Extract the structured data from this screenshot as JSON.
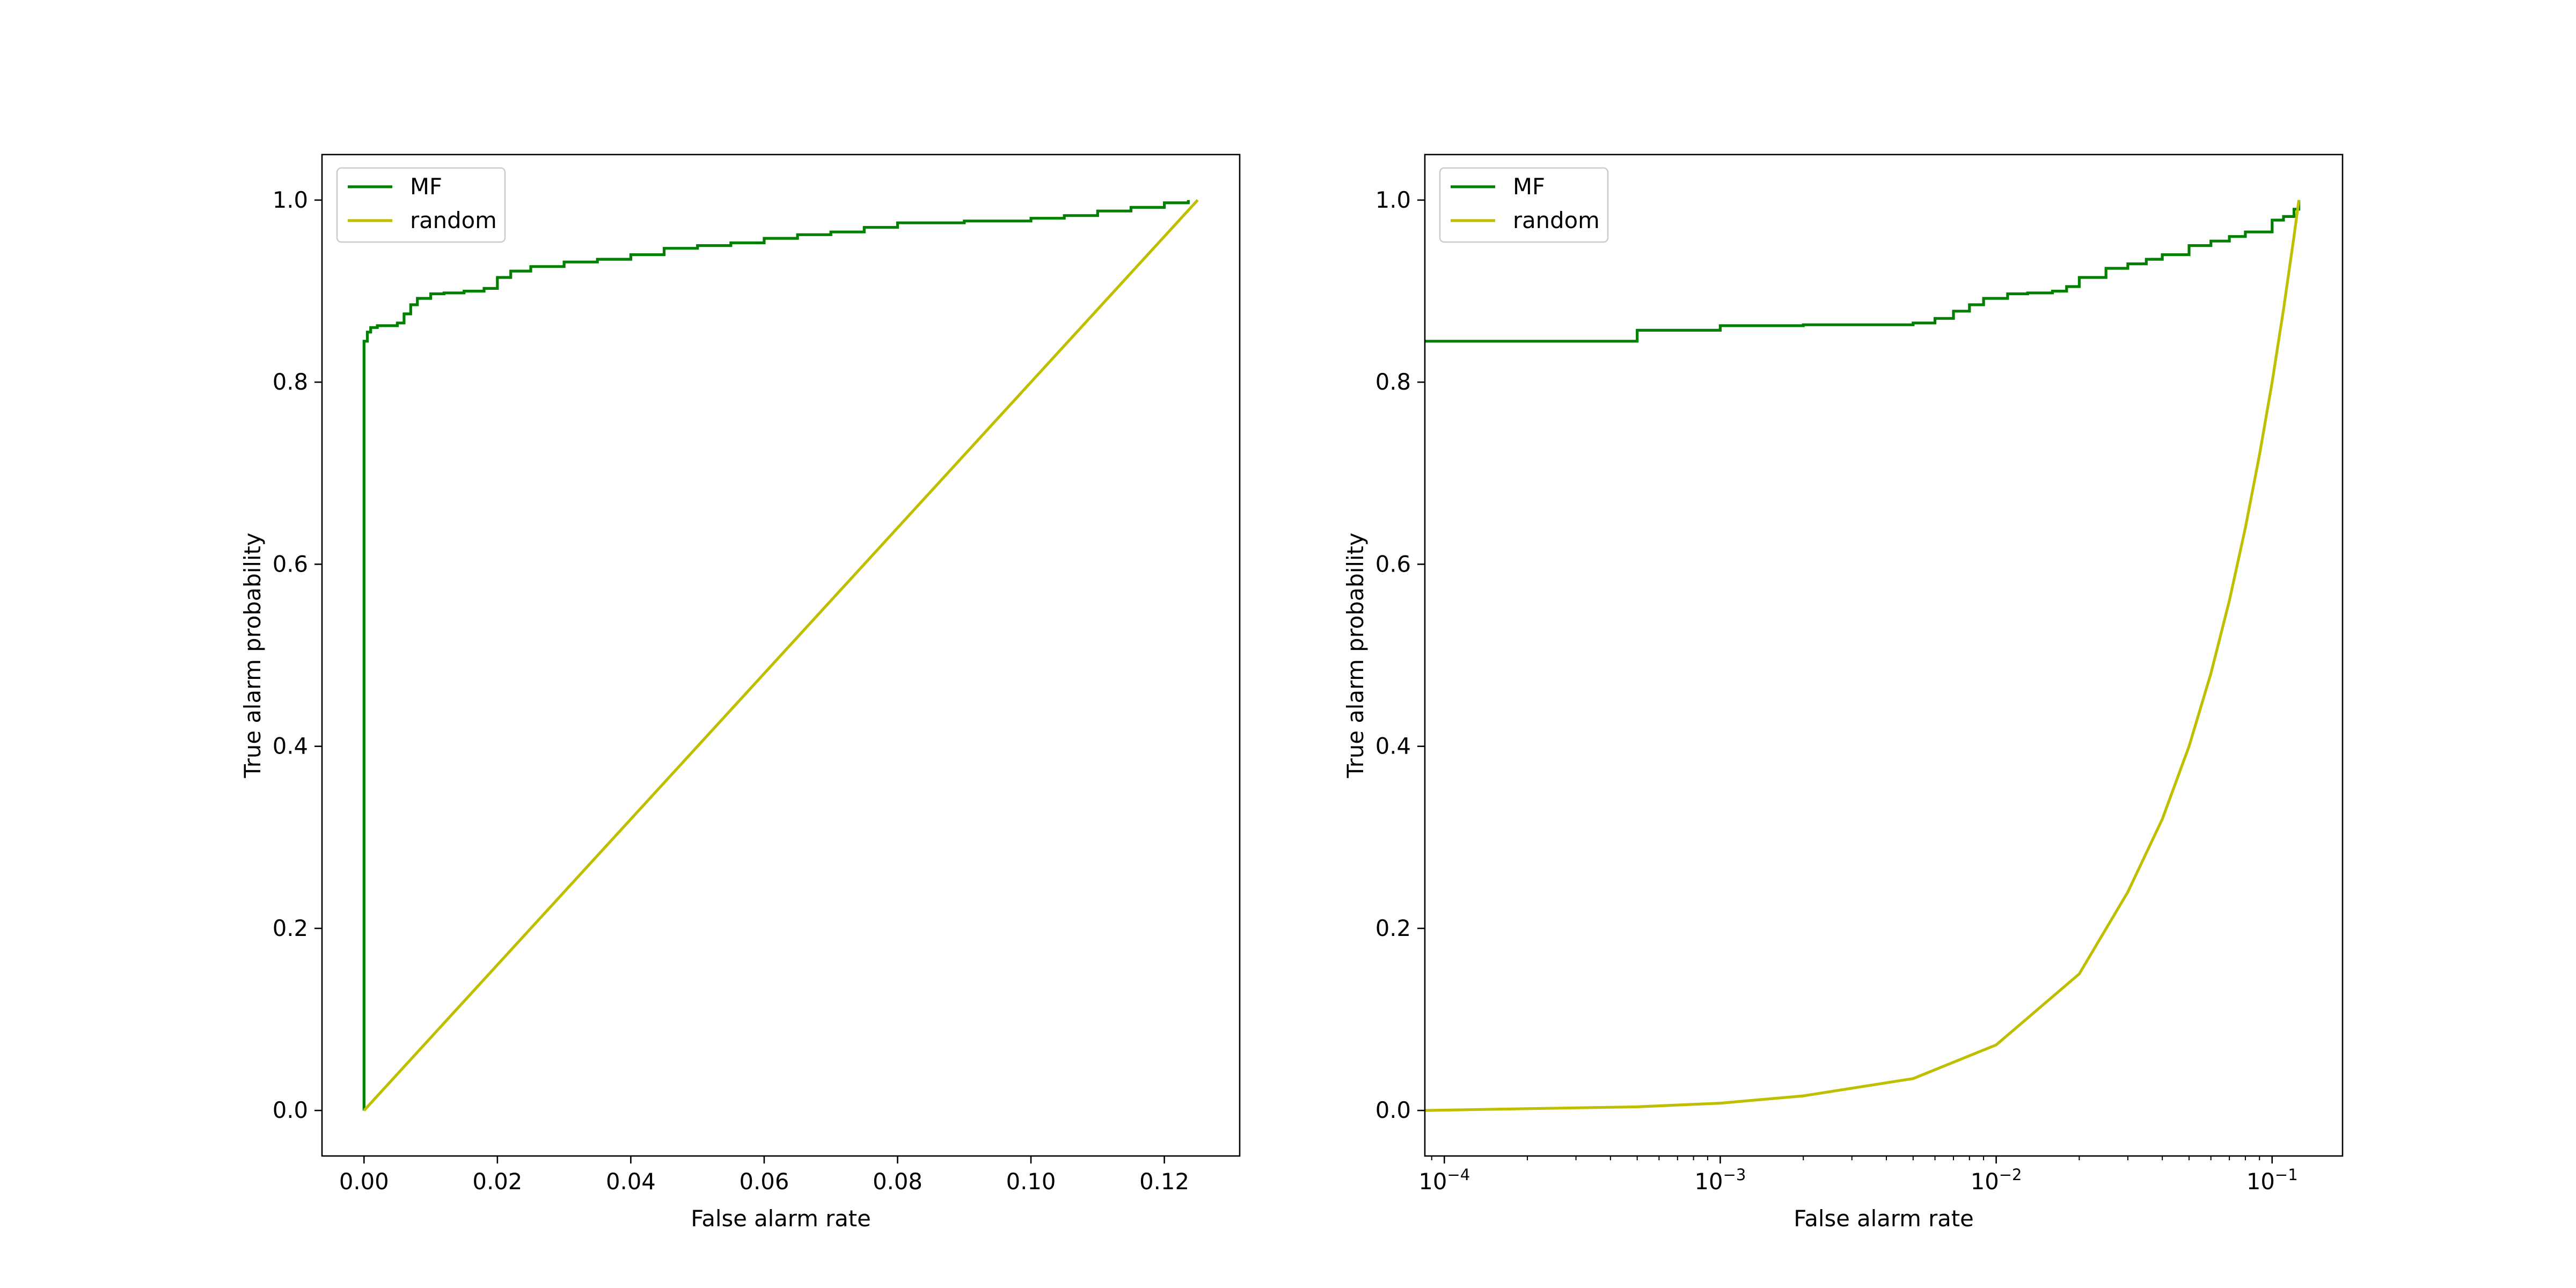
{
  "colors": {
    "mf": "#008000",
    "random": "#bfbf00"
  },
  "chart_data": [
    {
      "type": "line",
      "xscale": "linear",
      "xlabel": "False alarm rate",
      "ylabel": "True alarm probability",
      "xlim": [
        -0.0063,
        0.1313
      ],
      "ylim": [
        -0.05,
        1.05
      ],
      "xticks": [
        {
          "value": 0.0,
          "label": "0.00"
        },
        {
          "value": 0.02,
          "label": "0.02"
        },
        {
          "value": 0.04,
          "label": "0.04"
        },
        {
          "value": 0.06,
          "label": "0.06"
        },
        {
          "value": 0.08,
          "label": "0.08"
        },
        {
          "value": 0.1,
          "label": "0.10"
        },
        {
          "value": 0.12,
          "label": "0.12"
        }
      ],
      "yticks": [
        {
          "value": 0.0,
          "label": "0.0"
        },
        {
          "value": 0.2,
          "label": "0.2"
        },
        {
          "value": 0.4,
          "label": "0.4"
        },
        {
          "value": 0.6,
          "label": "0.6"
        },
        {
          "value": 0.8,
          "label": "0.8"
        },
        {
          "value": 1.0,
          "label": "1.0"
        }
      ],
      "legend": {
        "position": "upper-left",
        "entries": [
          "MF",
          "random"
        ]
      },
      "series": [
        {
          "name": "MF",
          "color": "#008000",
          "step": true,
          "x": [
            0.0,
            0.0,
            0.0005,
            0.001,
            0.002,
            0.005,
            0.006,
            0.007,
            0.008,
            0.01,
            0.012,
            0.015,
            0.018,
            0.02,
            0.022,
            0.025,
            0.03,
            0.035,
            0.04,
            0.045,
            0.05,
            0.055,
            0.06,
            0.065,
            0.07,
            0.075,
            0.08,
            0.09,
            0.1,
            0.105,
            0.11,
            0.115,
            0.12,
            0.1236
          ],
          "y": [
            0.0,
            0.845,
            0.855,
            0.86,
            0.862,
            0.865,
            0.875,
            0.885,
            0.892,
            0.897,
            0.898,
            0.9,
            0.903,
            0.915,
            0.922,
            0.927,
            0.932,
            0.935,
            0.94,
            0.947,
            0.95,
            0.953,
            0.958,
            0.962,
            0.965,
            0.97,
            0.975,
            0.977,
            0.98,
            0.983,
            0.988,
            0.992,
            0.997,
            1.0
          ]
        },
        {
          "name": "random",
          "color": "#bfbf00",
          "step": false,
          "x": [
            0.0,
            0.125
          ],
          "y": [
            0.0,
            1.0
          ]
        }
      ]
    },
    {
      "type": "line",
      "xscale": "log",
      "xlabel": "False alarm rate",
      "ylabel": "True alarm probability",
      "xlim": [
        8.5e-05,
        0.18
      ],
      "ylim": [
        -0.05,
        1.05
      ],
      "xticks": [
        {
          "value": 0.0001,
          "base": "10",
          "exp": "−4"
        },
        {
          "value": 0.001,
          "base": "10",
          "exp": "−3"
        },
        {
          "value": 0.01,
          "base": "10",
          "exp": "−2"
        },
        {
          "value": 0.1,
          "base": "10",
          "exp": "−1"
        }
      ],
      "yticks": [
        {
          "value": 0.0,
          "label": "0.0"
        },
        {
          "value": 0.2,
          "label": "0.2"
        },
        {
          "value": 0.4,
          "label": "0.4"
        },
        {
          "value": 0.6,
          "label": "0.6"
        },
        {
          "value": 0.8,
          "label": "0.8"
        },
        {
          "value": 1.0,
          "label": "1.0"
        }
      ],
      "legend": {
        "position": "upper-left",
        "entries": [
          "MF",
          "random"
        ]
      },
      "series": [
        {
          "name": "MF",
          "color": "#008000",
          "step": true,
          "x": [
            8.5e-05,
            0.0005,
            0.001,
            0.002,
            0.005,
            0.006,
            0.007,
            0.008,
            0.009,
            0.011,
            0.013,
            0.016,
            0.018,
            0.02,
            0.025,
            0.03,
            0.035,
            0.04,
            0.05,
            0.06,
            0.07,
            0.08,
            0.1,
            0.11,
            0.12,
            0.125
          ],
          "y": [
            0.845,
            0.857,
            0.862,
            0.863,
            0.865,
            0.87,
            0.878,
            0.885,
            0.892,
            0.897,
            0.898,
            0.9,
            0.905,
            0.915,
            0.925,
            0.93,
            0.935,
            0.94,
            0.95,
            0.955,
            0.96,
            0.965,
            0.978,
            0.982,
            0.99,
            1.0
          ]
        },
        {
          "name": "random",
          "color": "#bfbf00",
          "step": false,
          "x": [
            8.5e-05,
            0.0002,
            0.0005,
            0.001,
            0.002,
            0.005,
            0.01,
            0.02,
            0.03,
            0.04,
            0.05,
            0.06,
            0.07,
            0.08,
            0.09,
            0.1,
            0.11,
            0.12,
            0.125
          ],
          "y": [
            0.0,
            0.002,
            0.004,
            0.008,
            0.016,
            0.035,
            0.072,
            0.15,
            0.24,
            0.32,
            0.4,
            0.48,
            0.56,
            0.64,
            0.72,
            0.8,
            0.88,
            0.96,
            1.0
          ]
        }
      ]
    }
  ]
}
